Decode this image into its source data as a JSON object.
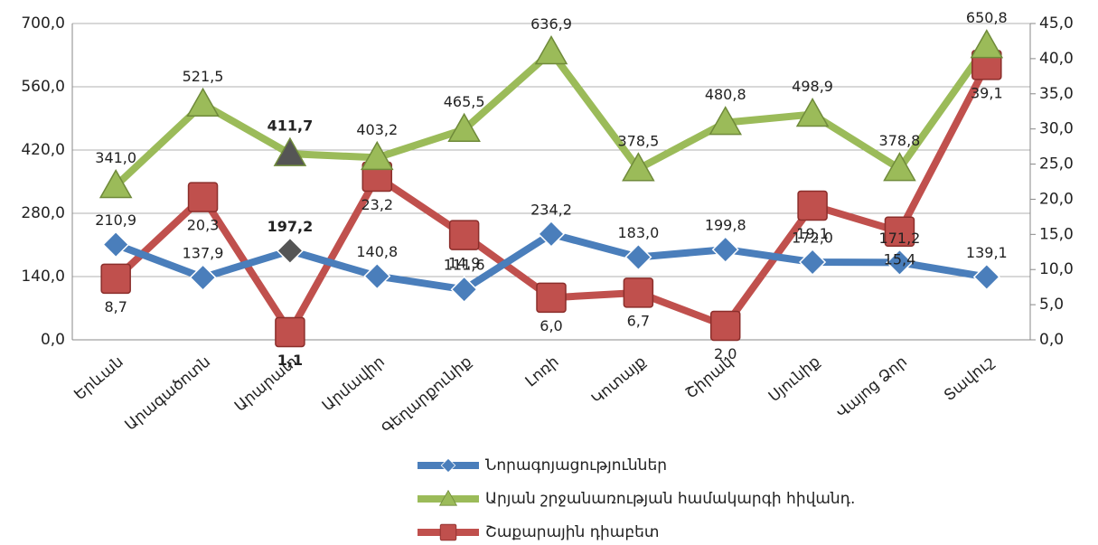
{
  "chart_data": {
    "type": "line",
    "categories": [
      "Երևան",
      "Արագածոտն",
      "Արարատ",
      "Արմավիր",
      "Գեղարքունիք",
      "Լոռի",
      "Կոտայք",
      "Շիրակ",
      "Սյունիք",
      "Վայոց Ձոր",
      "Տավուշ"
    ],
    "series": [
      {
        "name": "Նորագոյացություններ",
        "color": "#4a7ebb",
        "marker": "diamond",
        "values": [
          210.9,
          137.9,
          197.2,
          140.8,
          111.6,
          234.2,
          183.0,
          199.8,
          172.0,
          171.2,
          139.1
        ],
        "value_labels": [
          "210,9",
          "137,9",
          "197,2",
          "140,8",
          "111,6",
          "234,2",
          "183,0",
          "199,8",
          "172,0",
          "171,2",
          "139,1"
        ]
      },
      {
        "name": "Արյան շրջանառության համակարգի հիվանդ.",
        "color": "#9bbb59",
        "marker": "triangle",
        "values": [
          341.0,
          521.5,
          411.7,
          403.2,
          465.5,
          636.9,
          378.5,
          480.8,
          498.9,
          378.8,
          650.8
        ],
        "value_labels": [
          "341,0",
          "521,5",
          "411,7",
          "403,2",
          "465,5",
          "636,9",
          "378,5",
          "480,8",
          "498,9",
          "378,8",
          "650,8"
        ]
      },
      {
        "name": "Շաքարային դիաբետ",
        "color": "#c0504d",
        "marker": "square",
        "axis": "y2",
        "values": [
          8.7,
          20.3,
          1.1,
          23.2,
          14.9,
          6.0,
          6.7,
          2.0,
          19.1,
          15.4,
          39.1
        ],
        "value_labels": [
          "8,7",
          "20,3",
          "1,1",
          "23,2",
          "14,9",
          "6,0",
          "6,7",
          "2,0",
          "19,1",
          "15,4",
          "39,1"
        ]
      }
    ],
    "ylim": [
      0,
      700
    ],
    "yticks": [
      {
        "value": 0,
        "label": "0,0"
      },
      {
        "value": 140,
        "label": "140,0"
      },
      {
        "value": 280,
        "label": "280,0"
      },
      {
        "value": 420,
        "label": "420,0"
      },
      {
        "value": 560,
        "label": "560,0"
      },
      {
        "value": 700,
        "label": "700,0"
      }
    ],
    "y2lim": [
      0,
      45
    ],
    "y2ticks": [
      {
        "value": 0,
        "label": "0,0"
      },
      {
        "value": 5,
        "label": "5,0"
      },
      {
        "value": 10,
        "label": "10,0"
      },
      {
        "value": 15,
        "label": "15,0"
      },
      {
        "value": 20,
        "label": "20,0"
      },
      {
        "value": 25,
        "label": "25,0"
      },
      {
        "value": 30,
        "label": "30,0"
      },
      {
        "value": 35,
        "label": "35,0"
      },
      {
        "value": 40,
        "label": "40,0"
      },
      {
        "value": 45,
        "label": "45,0"
      }
    ],
    "grid": true,
    "legend": "bottom"
  }
}
